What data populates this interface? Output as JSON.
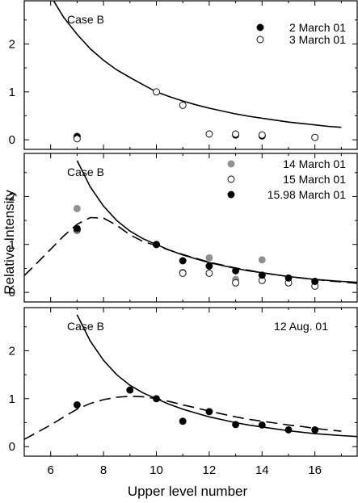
{
  "chart_data": [
    {
      "type": "scatter",
      "label": "Case B",
      "xlim": [
        5,
        17.6
      ],
      "ylim": [
        -0.2,
        2.9
      ],
      "y_ticks": [
        0,
        1,
        2
      ],
      "show_x_tick_labels": false,
      "curves": [
        {
          "style": "solid",
          "x": [
            6,
            6.5,
            7,
            7.5,
            8,
            8.5,
            9,
            9.5,
            10,
            10.5,
            11,
            11.5,
            12,
            12.5,
            13,
            13.5,
            14,
            14.5,
            15,
            15.5,
            16,
            16.5,
            17
          ],
          "y": [
            3.0,
            2.55,
            2.2,
            1.9,
            1.66,
            1.46,
            1.3,
            1.15,
            1.0,
            0.9,
            0.81,
            0.73,
            0.66,
            0.6,
            0.54,
            0.49,
            0.45,
            0.41,
            0.37,
            0.34,
            0.31,
            0.28,
            0.26
          ]
        }
      ],
      "series": [
        {
          "name": "2 March 01",
          "marker": "filled-black",
          "x": [
            7,
            13,
            14
          ],
          "y": [
            0.07,
            0.1,
            0.08
          ]
        },
        {
          "name": "3 March 01",
          "marker": "open",
          "x": [
            7,
            10,
            11,
            12,
            13,
            14,
            16
          ],
          "y": [
            0.02,
            1.0,
            0.72,
            0.12,
            0.12,
            0.1,
            0.05
          ]
        }
      ]
    },
    {
      "type": "scatter",
      "label": "Case B",
      "xlim": [
        5,
        17.6
      ],
      "ylim": [
        -0.2,
        2.9
      ],
      "y_ticks": [
        0,
        1,
        2
      ],
      "show_x_tick_labels": false,
      "curves": [
        {
          "style": "solid",
          "x": [
            7,
            7.5,
            8,
            8.5,
            9,
            9.5,
            10,
            10.5,
            11,
            11.5,
            12,
            12.5,
            13,
            13.5,
            14,
            14.5,
            15,
            15.5,
            16,
            16.5,
            17,
            17.6
          ],
          "y": [
            2.75,
            2.2,
            1.8,
            1.5,
            1.28,
            1.12,
            1.0,
            0.88,
            0.78,
            0.7,
            0.62,
            0.56,
            0.5,
            0.45,
            0.41,
            0.37,
            0.33,
            0.3,
            0.27,
            0.25,
            0.23,
            0.21
          ]
        },
        {
          "style": "dashed",
          "x": [
            5,
            5.5,
            6,
            6.5,
            7,
            7.5,
            8,
            8.5,
            9,
            9.5,
            10,
            10.5,
            11,
            11.5,
            12,
            12.5,
            13,
            13.5,
            14,
            14.5,
            15,
            15.5,
            16,
            16.5,
            17,
            17.6
          ],
          "y": [
            0.35,
            0.62,
            0.9,
            1.18,
            1.42,
            1.56,
            1.55,
            1.4,
            1.2,
            1.06,
            0.98,
            0.88,
            0.79,
            0.71,
            0.63,
            0.57,
            0.51,
            0.46,
            0.41,
            0.37,
            0.33,
            0.3,
            0.27,
            0.24,
            0.22,
            0.19
          ]
        }
      ],
      "series": [
        {
          "name": "14 March 01",
          "marker": "filled-gray",
          "x": [
            7,
            10,
            11,
            12,
            13,
            14,
            15,
            16
          ],
          "y": [
            1.75,
            1.0,
            0.42,
            0.72,
            0.27,
            0.68,
            0.3,
            0.22
          ]
        },
        {
          "name": "15 March 01",
          "marker": "open",
          "x": [
            7,
            10,
            11,
            12,
            13,
            14,
            15,
            16
          ],
          "y": [
            1.3,
            1.0,
            0.4,
            0.4,
            0.2,
            0.25,
            0.2,
            0.13
          ]
        },
        {
          "name": "15.98 March 01",
          "marker": "filled-black",
          "x": [
            7,
            10,
            11,
            12,
            13,
            14,
            15,
            16
          ],
          "y": [
            1.33,
            1.0,
            0.66,
            0.55,
            0.45,
            0.36,
            0.3,
            0.23
          ]
        }
      ]
    },
    {
      "type": "scatter",
      "label": "Case B",
      "annotation": "12 Aug. 01",
      "xlim": [
        5,
        17.6
      ],
      "ylim": [
        -0.2,
        2.9
      ],
      "y_ticks": [
        0,
        1,
        2
      ],
      "x_ticks": [
        6,
        8,
        10,
        12,
        14,
        16
      ],
      "show_x_tick_labels": true,
      "curves": [
        {
          "style": "solid",
          "x": [
            7,
            7.5,
            8,
            8.5,
            9,
            9.5,
            10,
            10.5,
            11,
            11.5,
            12,
            12.5,
            13,
            13.5,
            14,
            14.5,
            15,
            15.5,
            16,
            16.5,
            17,
            17.6
          ],
          "y": [
            2.75,
            2.2,
            1.8,
            1.5,
            1.28,
            1.12,
            1.0,
            0.88,
            0.78,
            0.7,
            0.62,
            0.56,
            0.5,
            0.45,
            0.41,
            0.37,
            0.33,
            0.3,
            0.27,
            0.25,
            0.23,
            0.21
          ]
        },
        {
          "style": "dashed",
          "x": [
            5,
            5.5,
            6,
            6.5,
            7,
            7.5,
            8,
            8.5,
            9,
            9.5,
            10,
            10.5,
            11,
            11.5,
            12,
            12.5,
            13,
            13.5,
            14,
            14.5,
            15,
            15.5,
            16,
            16.5,
            17
          ],
          "y": [
            0.15,
            0.3,
            0.45,
            0.62,
            0.78,
            0.9,
            0.98,
            1.03,
            1.05,
            1.04,
            1.0,
            0.94,
            0.87,
            0.81,
            0.74,
            0.68,
            0.62,
            0.57,
            0.53,
            0.49,
            0.45,
            0.42,
            0.38,
            0.35,
            0.32
          ]
        }
      ],
      "series": [
        {
          "name": "12 Aug. 01",
          "marker": "filled-black",
          "x": [
            7,
            9,
            10,
            11,
            12,
            13,
            14,
            15,
            16
          ],
          "y": [
            0.87,
            1.18,
            1.0,
            0.53,
            0.73,
            0.46,
            0.45,
            0.35,
            0.35
          ]
        }
      ]
    }
  ],
  "ylabel": "Relative Intensity",
  "xlabel": "Upper level number",
  "colors": {
    "filled-black": "#000000",
    "filled-gray": "#909090",
    "open": "#ffffff",
    "frame": "#000000"
  }
}
